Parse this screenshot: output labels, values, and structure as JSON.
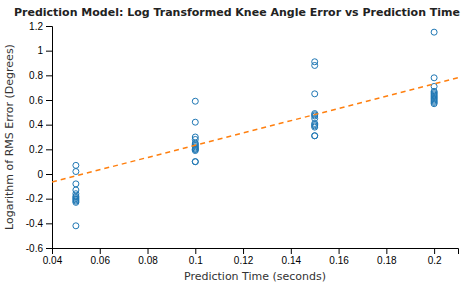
{
  "chart_data": {
    "type": "scatter",
    "title": "Prediction Model: Log Transformed Knee Angle Error vs Prediction Time",
    "x_label": "Prediction Time (seconds)",
    "y_label": "Logarithm of RMS Error (Degrees)",
    "xlim": [
      0.04,
      0.21
    ],
    "ylim": [
      -0.6,
      1.2
    ],
    "xticks": [
      0.04,
      0.06,
      0.08,
      0.1,
      0.12,
      0.14,
      0.16,
      0.18,
      0.2
    ],
    "yticks": [
      -0.6,
      -0.4,
      -0.2,
      0,
      0.2,
      0.4,
      0.6,
      0.8,
      1,
      1.2
    ],
    "grid": false,
    "series": [
      {
        "type": "scatter",
        "marker": "circle",
        "x": [
          0.05,
          0.05,
          0.05,
          0.05,
          0.05,
          0.05,
          0.05,
          0.05,
          0.05,
          0.05,
          0.05,
          0.05,
          0.1,
          0.1,
          0.1,
          0.1,
          0.1,
          0.1,
          0.1,
          0.1,
          0.1,
          0.1,
          0.1,
          0.1,
          0.1,
          0.1,
          0.15,
          0.15,
          0.15,
          0.15,
          0.15,
          0.15,
          0.15,
          0.15,
          0.15,
          0.15,
          0.15,
          0.15,
          0.15,
          0.2,
          0.2,
          0.2,
          0.2,
          0.2,
          0.2,
          0.2,
          0.2,
          0.2,
          0.2,
          0.2,
          0.2,
          0.2,
          0.2
        ],
        "values": [
          0.07,
          0.02,
          -0.08,
          -0.13,
          -0.16,
          -0.18,
          -0.19,
          -0.2,
          -0.21,
          -0.22,
          -0.23,
          -0.42,
          0.59,
          0.42,
          0.3,
          0.28,
          0.25,
          0.24,
          0.23,
          0.22,
          0.21,
          0.2,
          0.2,
          0.19,
          0.1,
          0.1,
          0.91,
          0.88,
          0.65,
          0.49,
          0.48,
          0.47,
          0.45,
          0.41,
          0.4,
          0.39,
          0.38,
          0.31,
          0.31,
          1.15,
          0.78,
          0.71,
          0.67,
          0.66,
          0.65,
          0.64,
          0.63,
          0.62,
          0.61,
          0.6,
          0.59,
          0.58,
          0.57
        ]
      },
      {
        "type": "line",
        "line_style": "dashed",
        "x": [
          0.04,
          0.21
        ],
        "values": [
          -0.065,
          0.78
        ]
      }
    ]
  }
}
